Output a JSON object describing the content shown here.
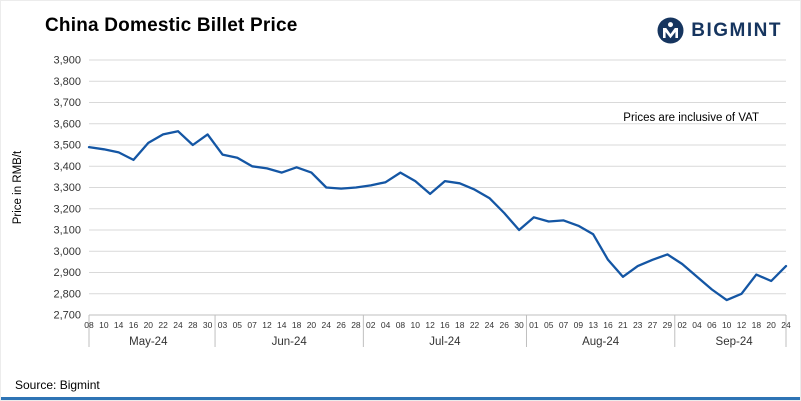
{
  "header": {
    "title": "China Domestic Billet Price",
    "logo_text": "BIGMINT"
  },
  "annotation": "Prices are inclusive of VAT",
  "source": "Source: Bigmint",
  "colors": {
    "line": "#1456A4",
    "grid": "#D9D9D9",
    "axis_line": "#BFBFBF",
    "axis_text": "#333333",
    "logo": "#16355F",
    "bottom_bar": "#2E74B5"
  },
  "chart_data": {
    "type": "line",
    "title": "China Domestic Billet Price",
    "ylabel": "Price in RMB/t",
    "ylim": [
      2700,
      3900
    ],
    "ytick_step": 100,
    "grid": true,
    "legend": "none",
    "x": [
      "08",
      "10",
      "14",
      "16",
      "20",
      "22",
      "24",
      "28",
      "30",
      "03",
      "05",
      "07",
      "12",
      "14",
      "18",
      "20",
      "24",
      "26",
      "28",
      "02",
      "04",
      "08",
      "10",
      "12",
      "16",
      "18",
      "22",
      "24",
      "26",
      "30",
      "01",
      "05",
      "07",
      "09",
      "13",
      "16",
      "21",
      "23",
      "27",
      "29",
      "02",
      "04",
      "06",
      "10",
      "12",
      "18",
      "20",
      "24"
    ],
    "month_groups": [
      {
        "label": "May-24",
        "count": 9
      },
      {
        "label": "Jun-24",
        "count": 10
      },
      {
        "label": "Jul-24",
        "count": 11
      },
      {
        "label": "Aug-24",
        "count": 10
      },
      {
        "label": "Sep-24",
        "count": 8
      }
    ],
    "series": [
      {
        "name": "China Domestic Billet Price (RMB/t, incl. VAT)",
        "values": [
          3490,
          3480,
          3465,
          3430,
          3510,
          3550,
          3565,
          3500,
          3550,
          3455,
          3440,
          3400,
          3390,
          3370,
          3395,
          3370,
          3300,
          3295,
          3300,
          3310,
          3325,
          3370,
          3330,
          3270,
          3330,
          3320,
          3290,
          3250,
          3180,
          3100,
          3160,
          3140,
          3145,
          3120,
          3080,
          2960,
          2880,
          2930,
          2960,
          2985,
          2940,
          2880,
          2820,
          2770,
          2800,
          2890,
          2860,
          2930
        ]
      }
    ]
  }
}
